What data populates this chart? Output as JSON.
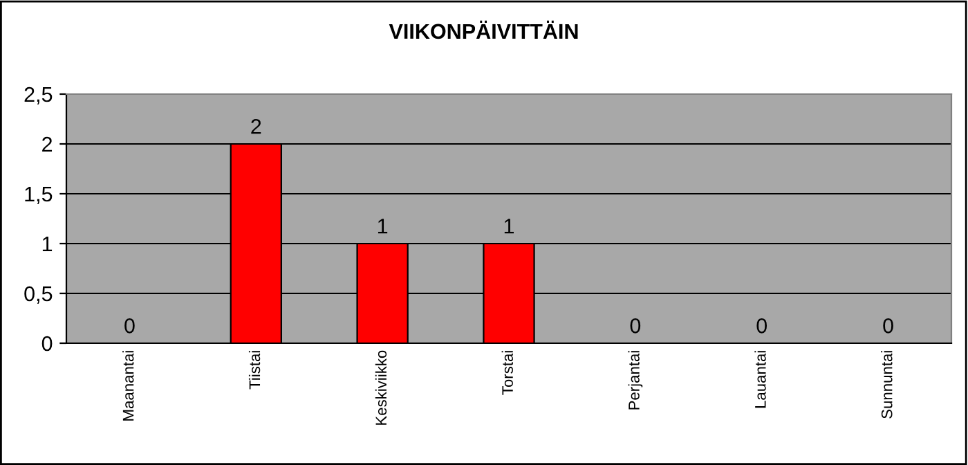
{
  "chart_data": {
    "type": "bar",
    "title": "VIIKONPÄIVITTÄIN",
    "categories": [
      "Maanantai",
      "Tiistai",
      "Keskiviikko",
      "Torstai",
      "Perjantai",
      "Lauantai",
      "Sunnuntai"
    ],
    "values": [
      0,
      2,
      1,
      1,
      0,
      0,
      0
    ],
    "color": "#ff0000",
    "ylim": [
      0,
      2.5
    ],
    "yticks": [
      0,
      {
        "value": 0.5,
        "label": "0,5"
      },
      1,
      {
        "value": 1.5,
        "label": "1,5"
      },
      2,
      {
        "value": 2.5,
        "label": "2,5"
      }
    ],
    "grid": "y",
    "data_labels": true
  }
}
